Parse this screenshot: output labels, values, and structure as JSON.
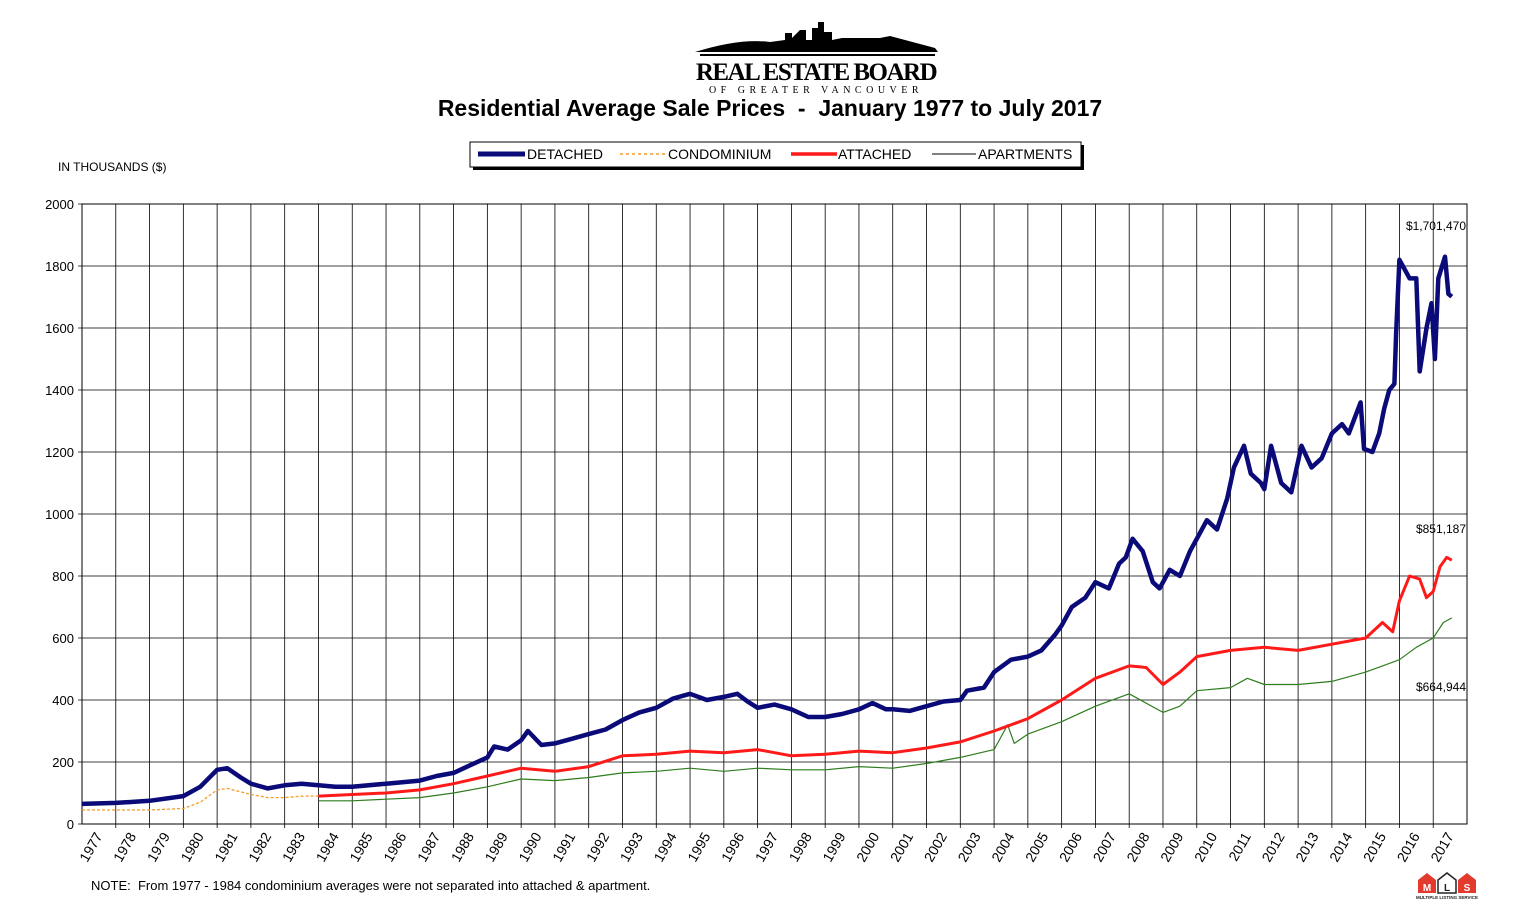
{
  "logo": {
    "name": "REAL ESTATE BOARD",
    "sub": "OF GREATER VANCOUVER"
  },
  "mls_logo": {
    "letters": "MLS",
    "text": "MULTIPLE LISTING SERVICE"
  },
  "colors": {
    "detached": "#0a0a78",
    "condominium": "#f39c28",
    "attached": "#ff1a1a",
    "apartments": "#2e7d1e"
  },
  "chart_data": {
    "type": "line",
    "title": "Residential Average Sale Prices  -  January 1977 to July 2017",
    "ylabel": "IN THOUSANDS ($)",
    "xlabel": "",
    "ylim": [
      0,
      2000
    ],
    "xlim": [
      1977,
      2018
    ],
    "yticks": [
      "0",
      "200",
      "400",
      "600",
      "800",
      "1000",
      "1200",
      "1400",
      "1600",
      "1800",
      "2000"
    ],
    "xticks": [
      "1977",
      "1978",
      "1979",
      "1980",
      "1981",
      "1982",
      "1983",
      "1984",
      "1985",
      "1986",
      "1987",
      "1988",
      "1989",
      "1990",
      "1991",
      "1992",
      "1993",
      "1994",
      "1995",
      "1996",
      "1997",
      "1998",
      "1999",
      "2000",
      "2001",
      "2002",
      "2003",
      "2004",
      "2005",
      "2006",
      "2007",
      "2008",
      "2009",
      "2010",
      "2011",
      "2012",
      "2013",
      "2014",
      "2015",
      "2016",
      "2017"
    ],
    "grid": true,
    "legend_position": "top-center",
    "series": [
      {
        "name": "DETACHED",
        "key": "detached",
        "style": "thick",
        "x": [
          1977,
          1978,
          1979,
          1980,
          1980.5,
          1981,
          1981.3,
          1981.7,
          1982,
          1982.5,
          1983,
          1983.5,
          1984,
          1984.5,
          1985,
          1986,
          1987,
          1987.5,
          1988,
          1988.5,
          1989,
          1989.2,
          1989.6,
          1990,
          1990.2,
          1990.6,
          1991,
          1991.5,
          1992,
          1992.5,
          1993,
          1993.5,
          1994,
          1994.5,
          1995,
          1995.5,
          1996,
          1996.4,
          1996.7,
          1997,
          1997.5,
          1998,
          1998.5,
          1999,
          1999.5,
          2000,
          2000.4,
          2000.8,
          2001,
          2001.5,
          2002,
          2002.5,
          2003,
          2003.2,
          2003.7,
          2004,
          2004.5,
          2005,
          2005.4,
          2005.8,
          2006,
          2006.3,
          2006.7,
          2007,
          2007.4,
          2007.7,
          2007.9,
          2008.1,
          2008.4,
          2008.7,
          2008.9,
          2009.2,
          2009.5,
          2009.8,
          2010,
          2010.3,
          2010.6,
          2010.9,
          2011.1,
          2011.4,
          2011.6,
          2011.9,
          2012,
          2012.2,
          2012.5,
          2012.8,
          2013.1,
          2013.4,
          2013.7,
          2014,
          2014.3,
          2014.5,
          2014.85,
          2014.95,
          2015.2,
          2015.4,
          2015.55,
          2015.7,
          2015.85,
          2015.9,
          2016,
          2016.15,
          2016.3,
          2016.5,
          2016.6,
          2016.8,
          2016.95,
          2017.05,
          2017.15,
          2017.35,
          2017.45,
          2017.55
        ],
        "values": [
          65,
          68,
          75,
          90,
          120,
          175,
          180,
          150,
          130,
          115,
          125,
          130,
          125,
          120,
          120,
          130,
          140,
          155,
          165,
          190,
          215,
          250,
          240,
          270,
          300,
          255,
          260,
          275,
          290,
          305,
          335,
          360,
          375,
          405,
          420,
          400,
          410,
          420,
          395,
          375,
          385,
          370,
          345,
          345,
          355,
          370,
          390,
          370,
          370,
          365,
          380,
          395,
          400,
          430,
          440,
          490,
          530,
          540,
          560,
          610,
          640,
          700,
          730,
          780,
          760,
          840,
          860,
          920,
          880,
          780,
          760,
          820,
          800,
          880,
          920,
          980,
          950,
          1050,
          1150,
          1220,
          1130,
          1100,
          1080,
          1220,
          1100,
          1070,
          1220,
          1150,
          1180,
          1260,
          1290,
          1260,
          1360,
          1210,
          1200,
          1260,
          1340,
          1400,
          1420,
          1580,
          1820,
          1790,
          1760,
          1760,
          1460,
          1600,
          1680,
          1500,
          1760,
          1830,
          1710,
          1701
        ]
      },
      {
        "name": "CONDOMINIUM",
        "key": "condominium",
        "style": "dashed",
        "x": [
          1977,
          1978,
          1979,
          1980,
          1980.5,
          1981,
          1981.3,
          1982,
          1982.5,
          1983,
          1983.5,
          1984
        ],
        "values": [
          45,
          45,
          45,
          50,
          70,
          110,
          115,
          95,
          85,
          85,
          90,
          90
        ]
      },
      {
        "name": "ATTACHED",
        "key": "attached",
        "style": "medium",
        "x": [
          1984,
          1985,
          1986,
          1987,
          1988,
          1989,
          1990,
          1991,
          1992,
          1993,
          1994,
          1995,
          1996,
          1997,
          1998,
          1999,
          2000,
          2001,
          2002,
          2003,
          2004,
          2005,
          2006,
          2007,
          2008,
          2008.5,
          2009,
          2009.5,
          2010,
          2011,
          2012,
          2013,
          2014,
          2015,
          2015.5,
          2015.8,
          2016,
          2016.3,
          2016.6,
          2016.8,
          2017,
          2017.2,
          2017.4,
          2017.55
        ],
        "values": [
          90,
          95,
          100,
          110,
          130,
          155,
          180,
          170,
          185,
          220,
          225,
          235,
          230,
          240,
          220,
          225,
          235,
          230,
          245,
          265,
          300,
          340,
          400,
          470,
          510,
          505,
          450,
          490,
          540,
          560,
          570,
          560,
          580,
          600,
          650,
          620,
          720,
          800,
          790,
          730,
          750,
          830,
          860,
          851
        ]
      },
      {
        "name": "APARTMENTS",
        "key": "apartments",
        "style": "thin",
        "x": [
          1984,
          1985,
          1986,
          1987,
          1988,
          1989,
          1990,
          1991,
          1992,
          1993,
          1994,
          1995,
          1996,
          1997,
          1998,
          1999,
          2000,
          2001,
          2002,
          2003,
          2004,
          2004.4,
          2004.6,
          2005,
          2006,
          2007,
          2008,
          2009,
          2009.5,
          2010,
          2011,
          2011.5,
          2012,
          2013,
          2014,
          2015,
          2016,
          2016.5,
          2017,
          2017.3,
          2017.55
        ],
        "values": [
          75,
          75,
          80,
          85,
          100,
          120,
          145,
          140,
          150,
          165,
          170,
          180,
          170,
          180,
          175,
          175,
          185,
          180,
          195,
          215,
          240,
          320,
          260,
          290,
          330,
          380,
          420,
          360,
          380,
          430,
          440,
          470,
          450,
          450,
          460,
          490,
          530,
          570,
          600,
          650,
          665
        ]
      }
    ],
    "annotations": [
      {
        "text": "$1,701,470",
        "series": "detached"
      },
      {
        "text": "$851,187",
        "series": "attached"
      },
      {
        "text": "$664,944",
        "series": "apartments"
      }
    ],
    "note": "NOTE:  From 1977 - 1984 condominium averages were not separated into attached & apartment."
  }
}
